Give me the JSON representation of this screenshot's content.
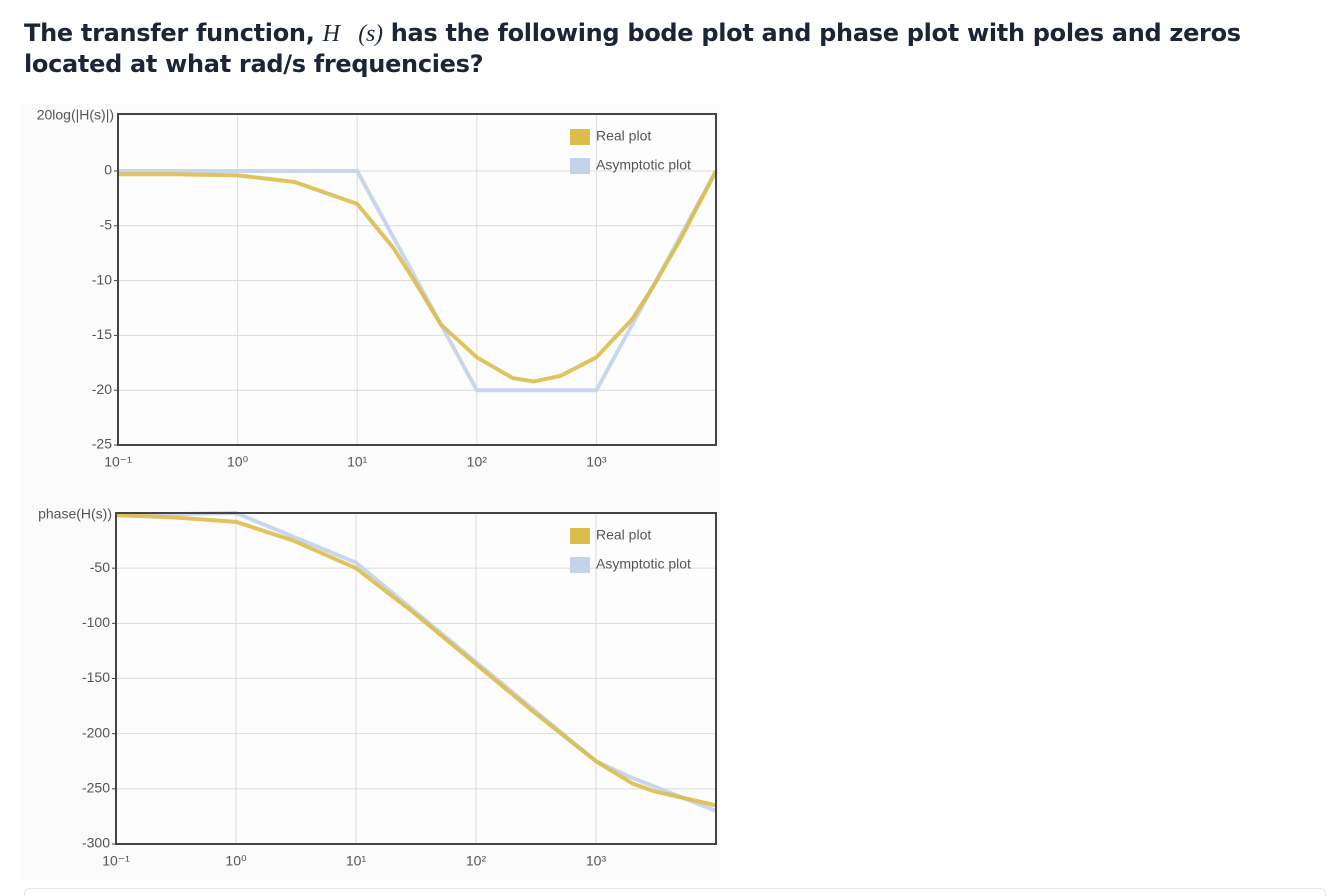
{
  "question": {
    "prefix": "The transfer function, ",
    "math": "H⃗(s)",
    "suffix": " has the following bode plot and phase plot with poles and zeros located at what rad/s frequencies?"
  },
  "chart_data": [
    {
      "type": "line",
      "xscale": "log",
      "ylabel": "20log(|H(s)|)",
      "grid": true,
      "legend": "upper right",
      "xlim": [
        0.1,
        10000
      ],
      "xticks": [
        {
          "value": 0.1,
          "label": "10⁻¹"
        },
        {
          "value": 1,
          "label": "10⁰"
        },
        {
          "value": 10,
          "label": "10¹"
        },
        {
          "value": 100,
          "label": "10²"
        },
        {
          "value": 1000,
          "label": "10³"
        }
      ],
      "ylim": [
        -25,
        5.2
      ],
      "yticks": [
        -25,
        -20,
        -15,
        -10,
        -5,
        0
      ],
      "series": [
        {
          "name": "Real plot",
          "color": "#dcbd4c",
          "x": [
            0.1,
            0.3,
            1,
            3,
            10,
            20,
            30,
            50,
            100,
            200,
            300,
            500,
            1000,
            2000,
            3000,
            5000,
            10000
          ],
          "values": [
            -0.3,
            -0.3,
            -0.4,
            -1,
            -3,
            -7,
            -10,
            -14,
            -17,
            -18.9,
            -19.2,
            -18.7,
            -17,
            -13.5,
            -10.5,
            -6.3,
            0
          ]
        },
        {
          "name": "Asymptotic plot",
          "color": "#c3d3ec",
          "x": [
            0.1,
            10,
            100,
            1000,
            10000
          ],
          "values": [
            0,
            0,
            -20,
            -20,
            0
          ]
        }
      ]
    },
    {
      "type": "line",
      "xscale": "log",
      "ylabel": "phase(H(s))",
      "grid": true,
      "legend": "upper right",
      "xlim": [
        0.1,
        10000
      ],
      "xticks": [
        {
          "value": 0.1,
          "label": "10⁻¹"
        },
        {
          "value": 1,
          "label": "10⁰"
        },
        {
          "value": 10,
          "label": "10¹"
        },
        {
          "value": 100,
          "label": "10²"
        },
        {
          "value": 1000,
          "label": "10³"
        }
      ],
      "ylim": [
        -300,
        0
      ],
      "yticks": [
        -300,
        -250,
        -200,
        -150,
        -100,
        -50
      ],
      "series": [
        {
          "name": "Real plot",
          "color": "#dcbd4c",
          "x": [
            0.1,
            0.3,
            1,
            3,
            10,
            30,
            100,
            300,
            1000,
            2000,
            3000,
            10000
          ],
          "values": [
            -2,
            -4,
            -8,
            -25,
            -50,
            -90,
            -137,
            -180,
            -225,
            -245,
            -252,
            -265
          ]
        },
        {
          "name": "Asymptotic plot",
          "color": "#c3d3ec",
          "x": [
            0.1,
            1,
            10,
            100,
            1000,
            2000,
            10000
          ],
          "values": [
            -2,
            0,
            -45,
            -135,
            -225,
            -240,
            -270
          ]
        }
      ]
    }
  ]
}
